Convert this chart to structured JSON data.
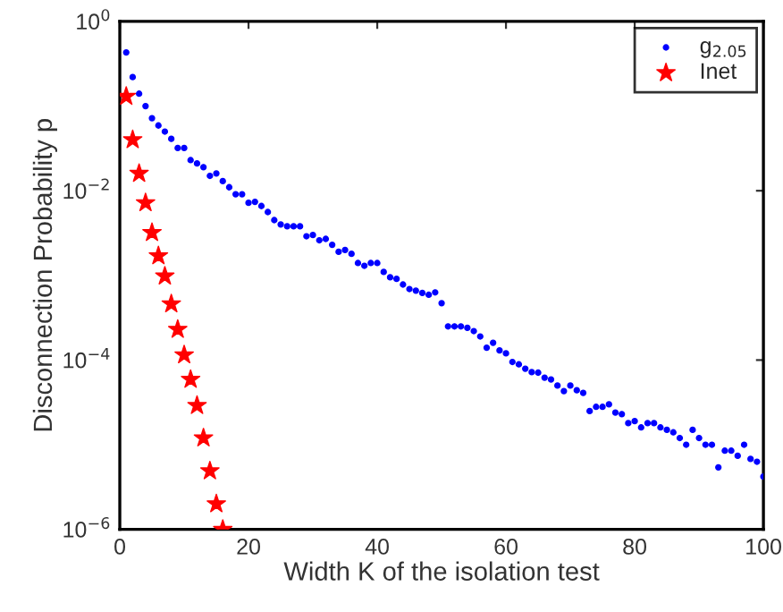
{
  "chart_data": {
    "type": "scatter",
    "xlabel": "Width K of the isolation test",
    "ylabel": "Disconnection Probability p",
    "log": "y",
    "xlim": [
      0,
      100
    ],
    "xticks": [
      0,
      20,
      40,
      60,
      80,
      100
    ],
    "ylim": [
      1e-06,
      1
    ],
    "yticks": [
      {
        "value": 1e-06,
        "label": "10$^{−6}$"
      },
      {
        "value": 0.0001,
        "label": "10$^{−4}$"
      },
      {
        "value": 0.01,
        "label": "10$^{−2}$"
      },
      {
        "value": 1,
        "label": "10$^{0}$"
      }
    ],
    "grid": false,
    "legend": "top right",
    "series": [
      {
        "name": "g$_{2.05}$",
        "color": "#0000ff",
        "marker": "circle",
        "x": [
          1,
          2,
          3,
          4,
          5,
          6,
          7,
          8,
          9,
          10,
          11,
          12,
          13,
          14,
          15,
          16,
          17,
          18,
          19,
          20,
          21,
          22,
          23,
          24,
          25,
          26,
          27,
          28,
          29,
          30,
          31,
          32,
          33,
          34,
          35,
          36,
          37,
          38,
          39,
          40,
          41,
          42,
          43,
          44,
          45,
          46,
          47,
          48,
          49,
          50,
          51,
          52,
          53,
          54,
          55,
          56,
          57,
          58,
          59,
          60,
          61,
          62,
          63,
          64,
          65,
          66,
          67,
          68,
          69,
          70,
          71,
          72,
          73,
          74,
          75,
          76,
          77,
          78,
          79,
          80,
          81,
          82,
          83,
          84,
          85,
          86,
          87,
          88,
          89,
          90,
          91,
          92,
          93,
          94,
          95,
          96,
          97,
          98,
          99,
          100
        ],
        "values": [
          0.43,
          0.22,
          0.14,
          0.1,
          0.072,
          0.059,
          0.05,
          0.041,
          0.032,
          0.032,
          0.023,
          0.021,
          0.019,
          0.015,
          0.016,
          0.013,
          0.011,
          0.0091,
          0.0091,
          0.0072,
          0.0074,
          0.0066,
          0.0056,
          0.0045,
          0.004,
          0.0038,
          0.0038,
          0.0038,
          0.0029,
          0.003,
          0.0026,
          0.0027,
          0.0023,
          0.0019,
          0.002,
          0.0018,
          0.0014,
          0.0013,
          0.0014,
          0.0014,
          0.0011,
          0.00095,
          0.00091,
          0.00078,
          0.00069,
          0.00066,
          0.00062,
          0.00059,
          0.00063,
          0.00047,
          0.00025,
          0.00025,
          0.00025,
          0.00024,
          0.00022,
          0.00019,
          0.00014,
          0.00016,
          0.00013,
          0.00012,
          9.5e-05,
          8.9e-05,
          7.9e-05,
          7.2e-05,
          7.1e-05,
          6.2e-05,
          5.9e-05,
          5e-05,
          4.3e-05,
          5e-05,
          4.4e-05,
          4.1e-05,
          2.5e-05,
          2.8e-05,
          2.8e-05,
          3e-05,
          2.4e-05,
          2.3e-05,
          1.8e-05,
          1.9e-05,
          1.6e-05,
          1.8e-05,
          1.8e-05,
          1.6e-05,
          1.5e-05,
          1.4e-05,
          1.2e-05,
          1e-05,
          1.5e-05,
          1.2e-05,
          1e-05,
          1e-05,
          5.4e-06,
          8.5e-06,
          8.5e-06,
          7.4e-06,
          1e-05,
          6.8e-06,
          6.3e-06,
          4.2e-06
        ]
      },
      {
        "name": "Inet",
        "color": "#ff0000",
        "marker": "star",
        "x": [
          1,
          2,
          3,
          4,
          5,
          6,
          7,
          8,
          9,
          10,
          11,
          12,
          13,
          14,
          15,
          16
        ],
        "values": [
          0.13,
          0.04,
          0.016,
          0.0072,
          0.0032,
          0.0017,
          0.00098,
          0.00046,
          0.00023,
          0.000115,
          5.9e-05,
          2.9e-05,
          1.2e-05,
          4.9e-06,
          2e-06,
          1e-06
        ]
      }
    ]
  }
}
